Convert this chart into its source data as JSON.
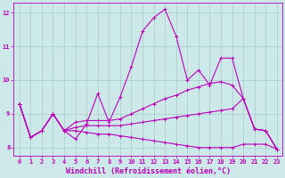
{
  "xlabel": "Windchill (Refroidissement éolien,°C)",
  "xlim": [
    -0.5,
    23.5
  ],
  "ylim": [
    7.75,
    12.3
  ],
  "yticks": [
    8,
    9,
    10,
    11,
    12
  ],
  "xticks": [
    0,
    1,
    2,
    3,
    4,
    5,
    6,
    7,
    8,
    9,
    10,
    11,
    12,
    13,
    14,
    15,
    16,
    17,
    18,
    19,
    20,
    21,
    22,
    23
  ],
  "background_color": "#cce8e8",
  "grid_color": "#aacccc",
  "line_color": "#bb00bb",
  "lines": [
    {
      "x": [
        0,
        1,
        2,
        3,
        4,
        5,
        6,
        7,
        8,
        9,
        10,
        11,
        12,
        13,
        14,
        15,
        16,
        17,
        18,
        19,
        20,
        21,
        22,
        23
      ],
      "y": [
        9.3,
        8.3,
        8.5,
        9.0,
        8.5,
        8.25,
        8.7,
        9.6,
        8.75,
        9.5,
        10.4,
        11.45,
        11.85,
        12.1,
        11.3,
        10.0,
        10.3,
        9.85,
        10.65,
        10.65,
        9.45,
        8.55,
        8.5,
        7.95
      ]
    },
    {
      "x": [
        0,
        1,
        2,
        3,
        4,
        5,
        6,
        7,
        8,
        9,
        10,
        11,
        12,
        13,
        14,
        15,
        16,
        17,
        18,
        19,
        20,
        21,
        22,
        23
      ],
      "y": [
        9.3,
        8.3,
        8.5,
        9.0,
        8.5,
        8.75,
        8.8,
        8.8,
        8.8,
        8.85,
        9.0,
        9.15,
        9.3,
        9.45,
        9.55,
        9.7,
        9.8,
        9.9,
        9.95,
        9.85,
        9.45,
        8.55,
        8.5,
        7.95
      ]
    },
    {
      "x": [
        0,
        1,
        2,
        3,
        4,
        5,
        6,
        7,
        8,
        9,
        10,
        11,
        12,
        13,
        14,
        15,
        16,
        17,
        18,
        19,
        20,
        21,
        22,
        23
      ],
      "y": [
        9.3,
        8.3,
        8.5,
        9.0,
        8.5,
        8.6,
        8.65,
        8.65,
        8.65,
        8.65,
        8.7,
        8.75,
        8.8,
        8.85,
        8.9,
        8.95,
        9.0,
        9.05,
        9.1,
        9.15,
        9.45,
        8.55,
        8.5,
        7.95
      ]
    },
    {
      "x": [
        0,
        1,
        2,
        3,
        4,
        5,
        6,
        7,
        8,
        9,
        10,
        11,
        12,
        13,
        14,
        15,
        16,
        17,
        18,
        19,
        20,
        21,
        22,
        23
      ],
      "y": [
        9.3,
        8.3,
        8.5,
        9.0,
        8.5,
        8.5,
        8.45,
        8.4,
        8.4,
        8.35,
        8.3,
        8.25,
        8.2,
        8.15,
        8.1,
        8.05,
        8.0,
        8.0,
        8.0,
        8.0,
        8.1,
        8.1,
        8.1,
        7.95
      ]
    }
  ],
  "marker": "+",
  "markersize": 3,
  "linewidth": 0.8,
  "tick_fontsize": 5,
  "xlabel_fontsize": 6
}
